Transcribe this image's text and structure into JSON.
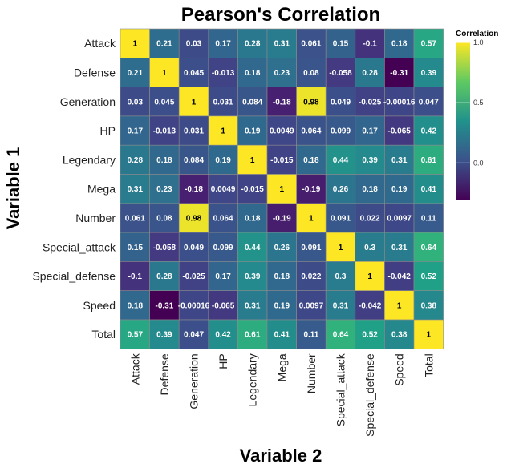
{
  "chart_data": {
    "type": "heatmap",
    "title": "Pearson's Correlation",
    "xlabel": "Variable 2",
    "ylabel": "Variable 1",
    "legend": {
      "title": "Correlation",
      "position": "right",
      "range": [
        -0.31,
        1.0
      ],
      "ticks": [
        "0.0",
        "0.5",
        "1.0"
      ],
      "tick_values": [
        0.0,
        0.5,
        1.0
      ]
    },
    "colormap": "viridis",
    "x_categories": [
      "Attack",
      "Defense",
      "Generation",
      "HP",
      "Legendary",
      "Mega",
      "Number",
      "Special_attack",
      "Special_defense",
      "Speed",
      "Total"
    ],
    "y_categories": [
      "Attack",
      "Defense",
      "Generation",
      "HP",
      "Legendary",
      "Mega",
      "Number",
      "Special_attack",
      "Special_defense",
      "Speed",
      "Total"
    ],
    "values": [
      [
        1,
        0.21,
        0.03,
        0.17,
        0.28,
        0.31,
        0.061,
        0.15,
        -0.1,
        0.18,
        0.57
      ],
      [
        0.21,
        1,
        0.045,
        -0.013,
        0.18,
        0.23,
        0.08,
        -0.058,
        0.28,
        -0.31,
        0.39
      ],
      [
        0.03,
        0.045,
        1,
        0.031,
        0.084,
        -0.18,
        0.98,
        0.049,
        -0.025,
        -0.00016,
        0.047
      ],
      [
        0.17,
        -0.013,
        0.031,
        1,
        0.19,
        0.0049,
        0.064,
        0.099,
        0.17,
        -0.065,
        0.42
      ],
      [
        0.28,
        0.18,
        0.084,
        0.19,
        1,
        -0.015,
        0.18,
        0.44,
        0.39,
        0.31,
        0.61
      ],
      [
        0.31,
        0.23,
        -0.18,
        0.0049,
        -0.015,
        1,
        -0.19,
        0.26,
        0.18,
        0.19,
        0.41
      ],
      [
        0.061,
        0.08,
        0.98,
        0.064,
        0.18,
        -0.19,
        1,
        0.091,
        0.022,
        0.0097,
        0.11
      ],
      [
        0.15,
        -0.058,
        0.049,
        0.099,
        0.44,
        0.26,
        0.091,
        1,
        0.3,
        0.31,
        0.64
      ],
      [
        -0.1,
        0.28,
        -0.025,
        0.17,
        0.39,
        0.18,
        0.022,
        0.3,
        1,
        -0.042,
        0.52
      ],
      [
        0.18,
        -0.31,
        -0.00016,
        -0.065,
        0.31,
        0.19,
        0.0097,
        0.31,
        -0.042,
        1,
        0.38
      ],
      [
        0.57,
        0.39,
        0.047,
        0.42,
        0.61,
        0.41,
        0.11,
        0.64,
        0.52,
        0.38,
        1
      ]
    ],
    "labels": [
      [
        "1",
        "0.21",
        "0.03",
        "0.17",
        "0.28",
        "0.31",
        "0.061",
        "0.15",
        "-0.1",
        "0.18",
        "0.57"
      ],
      [
        "0.21",
        "1",
        "0.045",
        "-0.013",
        "0.18",
        "0.23",
        "0.08",
        "-0.058",
        "0.28",
        "-0.31",
        "0.39"
      ],
      [
        "0.03",
        "0.045",
        "1",
        "0.031",
        "0.084",
        "-0.18",
        "0.98",
        "0.049",
        "-0.025",
        "-0.00016",
        "0.047"
      ],
      [
        "0.17",
        "-0.013",
        "0.031",
        "1",
        "0.19",
        "0.0049",
        "0.064",
        "0.099",
        "0.17",
        "-0.065",
        "0.42"
      ],
      [
        "0.28",
        "0.18",
        "0.084",
        "0.19",
        "1",
        "-0.015",
        "0.18",
        "0.44",
        "0.39",
        "0.31",
        "0.61"
      ],
      [
        "0.31",
        "0.23",
        "-0.18",
        "0.0049",
        "-0.015",
        "1",
        "-0.19",
        "0.26",
        "0.18",
        "0.19",
        "0.41"
      ],
      [
        "0.061",
        "0.08",
        "0.98",
        "0.064",
        "0.18",
        "-0.19",
        "1",
        "0.091",
        "0.022",
        "0.0097",
        "0.11"
      ],
      [
        "0.15",
        "-0.058",
        "0.049",
        "0.099",
        "0.44",
        "0.26",
        "0.091",
        "1",
        "0.3",
        "0.31",
        "0.64"
      ],
      [
        "-0.1",
        "0.28",
        "-0.025",
        "0.17",
        "0.39",
        "0.18",
        "0.022",
        "0.3",
        "1",
        "-0.042",
        "0.52"
      ],
      [
        "0.18",
        "-0.31",
        "-0.00016",
        "-0.065",
        "0.31",
        "0.19",
        "0.0097",
        "0.31",
        "-0.042",
        "1",
        "0.38"
      ],
      [
        "0.57",
        "0.39",
        "0.047",
        "0.42",
        "0.61",
        "0.41",
        "0.11",
        "0.64",
        "0.52",
        "0.38",
        "1"
      ]
    ],
    "grid": false
  }
}
